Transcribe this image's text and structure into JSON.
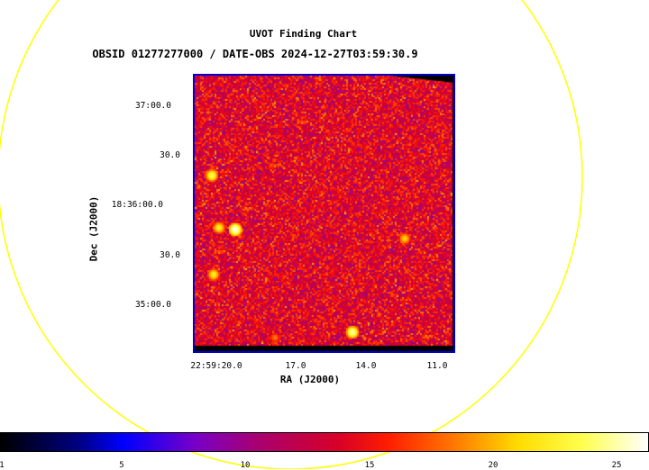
{
  "chart": {
    "title": "UVOT Finding Chart",
    "subtitle": "OBSID 01277277000 / DATE-OBS 2024-12-27T03:59:30.9",
    "xlabel": "RA (J2000)",
    "ylabel": "Dec (J2000)",
    "yticks": [
      "37:00.0",
      "30.0",
      "18:36:00.0",
      "30.0",
      "35:00.0"
    ],
    "xticks": [
      "22:59:20.0",
      "17.0",
      "14.0",
      "11.0"
    ]
  },
  "colorbar": {
    "ticks": [
      "1",
      "5",
      "10",
      "15",
      "20",
      "25"
    ],
    "range": [
      1,
      26.5
    ]
  },
  "colors": {
    "circle": "#ffff00",
    "frame": "#0000cc"
  },
  "chart_data": {
    "type": "heatmap",
    "title": "UVOT Finding Chart",
    "subtitle": "OBSID 01277277000 / DATE-OBS 2024-12-27T03:59:30.9",
    "xlabel": "RA (J2000)",
    "ylabel": "Dec (J2000)",
    "xticks": [
      "22:59:20.0",
      "17.0",
      "14.0",
      "11.0"
    ],
    "yticks": [
      "37:00.0",
      "30.0",
      "18:36:00.0",
      "30.0",
      "35:00.0"
    ],
    "colorbar_range": [
      1,
      26.5
    ],
    "colorbar_ticks": [
      1,
      5,
      10,
      15,
      20,
      25
    ]
  }
}
